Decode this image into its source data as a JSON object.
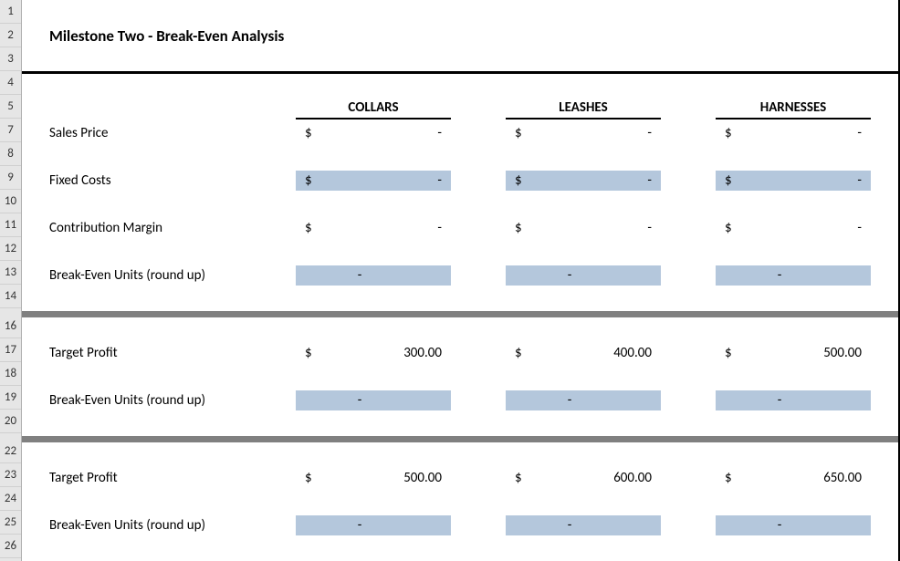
{
  "title": "Milestone Two - Break-Even Analysis",
  "columns": [
    "COLLARS",
    "LEASHES",
    "HARNESSES"
  ],
  "row_numbers": [
    1,
    2,
    3,
    4,
    5,
    7,
    8,
    9,
    10,
    11,
    12,
    13,
    14,
    "sep",
    16,
    17,
    18,
    19,
    20,
    "sep",
    22,
    23,
    24,
    25,
    26
  ],
  "section1": {
    "rows": [
      {
        "label": "Sales Price",
        "type": "currency",
        "highlight": false,
        "values": [
          "-",
          "-",
          "-"
        ]
      },
      {
        "label": "Fixed Costs",
        "type": "currency",
        "highlight": true,
        "values": [
          "-",
          "-",
          "-"
        ]
      },
      {
        "label": "Contribution Margin",
        "type": "currency",
        "highlight": false,
        "values": [
          "-",
          "-",
          "-"
        ]
      },
      {
        "label": "Break-Even Units (round up)",
        "type": "plain",
        "highlight": true,
        "values": [
          "-",
          "-",
          "-"
        ]
      }
    ]
  },
  "section2": {
    "rows": [
      {
        "label": "Target Profit",
        "type": "currency",
        "highlight": false,
        "values": [
          "300.00",
          "400.00",
          "500.00"
        ]
      },
      {
        "label": "Break-Even Units (round up)",
        "type": "plain",
        "highlight": true,
        "values": [
          "-",
          "-",
          "-"
        ]
      }
    ]
  },
  "section3": {
    "rows": [
      {
        "label": "Target Profit",
        "type": "currency",
        "highlight": false,
        "values": [
          "500.00",
          "600.00",
          "650.00"
        ]
      },
      {
        "label": "Break-Even Units (round up)",
        "type": "plain",
        "highlight": true,
        "values": [
          "-",
          "-",
          "-"
        ]
      }
    ]
  },
  "colors": {
    "highlight": "#b4c7dc",
    "separator": "#808080",
    "row_header_bg": "#e6e6e6"
  }
}
